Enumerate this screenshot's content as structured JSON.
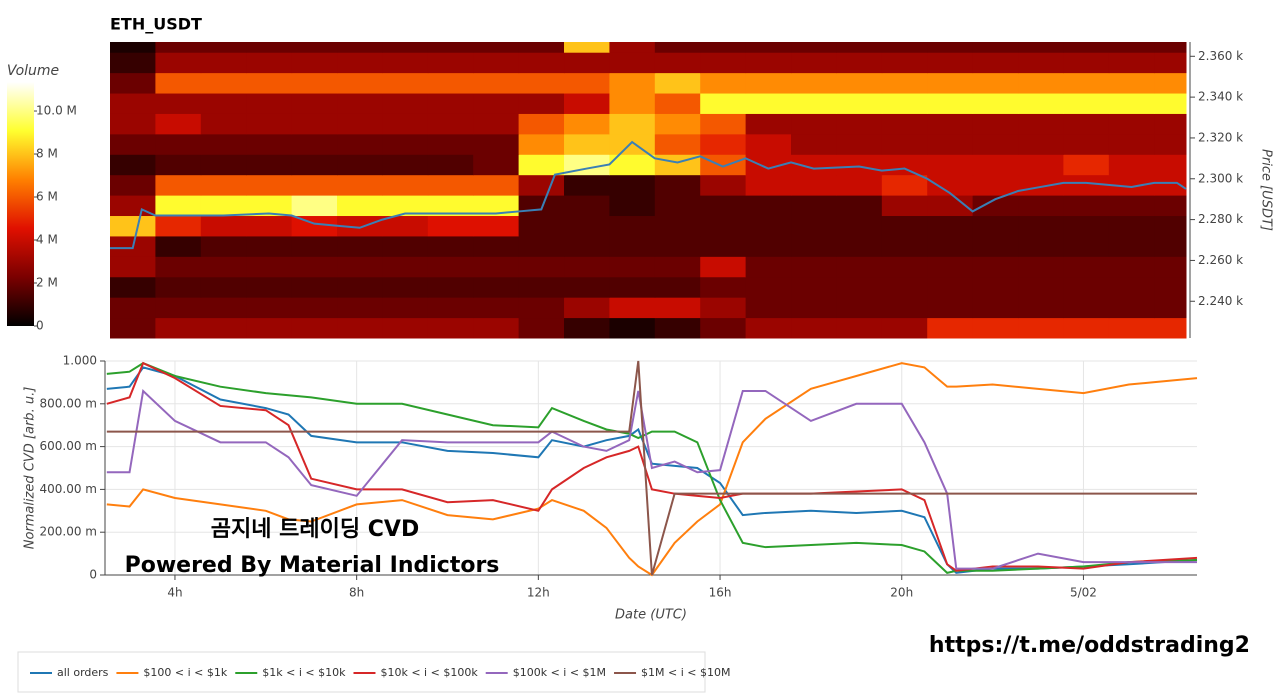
{
  "chart_data": [
    {
      "type": "heatmap",
      "title": "ETH_USDT",
      "xlim": [
        2.5,
        26.2
      ],
      "xbins": [
        2.5,
        3.5,
        4.5,
        5.5,
        6.5,
        7.5,
        8.5,
        9.5,
        10.5,
        11.5,
        12.5,
        13.5,
        14.5,
        15.5,
        16.5,
        17.5,
        18.5,
        19.5,
        20.5,
        21.5,
        22.5,
        23.5,
        24.5,
        25.5,
        26.2
      ],
      "ylim": [
        2.222,
        2.367
      ],
      "ybins": [
        2.222,
        2.232,
        2.242,
        2.252,
        2.262,
        2.272,
        2.282,
        2.292,
        2.302,
        2.312,
        2.322,
        2.332,
        2.342,
        2.352,
        2.362,
        2.367
      ],
      "z": [
        [
          2,
          3,
          3,
          3,
          3,
          3,
          3,
          3,
          3,
          2,
          1,
          0.5,
          1,
          2,
          3,
          3,
          3,
          3,
          5,
          5,
          5,
          5,
          5,
          5
        ],
        [
          2,
          2,
          2,
          2,
          2,
          2,
          2,
          2,
          2,
          2,
          3,
          4,
          4,
          3,
          2,
          2,
          2,
          2,
          2,
          2,
          2,
          2,
          2,
          2
        ],
        [
          1,
          1.5,
          1.5,
          1.5,
          1.5,
          1.5,
          1.5,
          1.5,
          1.5,
          1.5,
          1.5,
          1.5,
          1.5,
          2,
          2,
          2,
          2,
          2,
          2,
          2,
          2,
          2,
          2,
          2
        ],
        [
          3,
          2,
          2,
          2,
          2,
          2,
          2,
          2,
          2,
          2,
          2,
          2,
          2,
          4,
          2,
          2,
          2,
          2,
          2,
          2,
          2,
          2,
          2,
          2
        ],
        [
          3,
          1,
          1.5,
          1.5,
          1.5,
          1.5,
          1.5,
          1.5,
          1.5,
          1.5,
          1.5,
          1.5,
          1.5,
          1.5,
          1.5,
          1.5,
          1.5,
          1.5,
          1.5,
          1.5,
          1.5,
          1.5,
          1.5,
          1.5
        ],
        [
          8,
          5,
          4,
          4,
          4.5,
          4,
          4,
          4.5,
          4.5,
          1.5,
          1.5,
          1.5,
          1.5,
          1.5,
          1.5,
          1.5,
          1.5,
          1.5,
          1.5,
          1.5,
          1.5,
          1.5,
          1.5,
          1.5
        ],
        [
          3,
          9,
          9,
          9,
          10,
          9,
          9,
          9,
          9,
          1.5,
          1.5,
          1,
          1.5,
          1.5,
          1.5,
          1.5,
          1.5,
          3,
          3,
          2,
          2,
          2,
          2,
          2
        ],
        [
          2,
          6,
          6,
          6,
          6,
          6,
          6,
          6,
          6,
          3,
          1,
          1,
          1.5,
          3,
          4,
          4,
          4,
          5,
          4,
          4,
          4,
          4,
          4,
          4
        ],
        [
          1,
          1.5,
          1.5,
          1.5,
          1.5,
          1.5,
          1.5,
          1.5,
          2,
          9,
          10,
          9,
          8,
          6,
          4,
          4,
          4,
          4,
          4,
          4,
          4,
          5,
          4,
          4
        ],
        [
          2,
          2,
          2,
          2,
          2,
          2,
          2,
          2,
          2,
          7,
          8,
          8,
          6,
          5,
          4,
          3,
          3,
          3,
          3,
          3,
          3,
          3,
          3,
          3
        ],
        [
          3,
          4,
          3,
          3,
          3,
          3,
          3,
          3,
          3,
          6,
          7,
          8,
          7,
          6,
          3,
          3,
          3,
          3,
          3,
          3,
          3,
          3,
          3,
          3
        ],
        [
          3,
          3,
          3,
          3,
          3,
          3,
          3,
          3,
          3,
          3,
          4,
          7,
          6,
          9,
          9,
          9,
          9,
          9,
          9,
          9,
          9,
          9,
          9,
          9
        ],
        [
          2,
          6,
          6,
          6,
          6,
          6,
          6,
          6,
          6,
          6,
          6,
          7,
          8,
          7,
          7,
          7,
          7,
          7,
          7,
          7,
          7,
          7,
          7,
          7
        ],
        [
          1,
          3,
          3,
          3,
          3,
          3,
          3,
          3,
          3,
          3,
          3,
          3,
          3,
          3,
          3,
          3,
          3,
          3,
          3,
          3,
          3,
          3,
          3,
          3
        ],
        [
          0.5,
          2,
          2,
          2,
          2,
          2,
          2,
          2,
          2,
          2,
          8,
          3,
          2,
          2,
          2,
          2,
          2,
          2,
          2,
          2,
          2,
          2,
          2,
          2
        ]
      ],
      "colormap": [
        "#000000",
        "#7a0000",
        "#e01000",
        "#ff8000",
        "#ffff30",
        "#ffffff"
      ],
      "colorbar": {
        "title": "Volume",
        "clim": [
          0,
          11.35
        ],
        "ticks": [
          0,
          {
            "value": 2,
            "label": "2 M"
          },
          {
            "value": 4,
            "label": "4 M"
          },
          {
            "value": 6,
            "label": "6 M"
          },
          {
            "value": 8,
            "label": "8 M"
          },
          {
            "value": 10,
            "label": "10.0 M"
          }
        ]
      },
      "ylabel": "Price [USDT]",
      "yticks": [
        {
          "value": 2.24,
          "label": "2.240 k"
        },
        {
          "value": 2.26,
          "label": "2.260 k"
        },
        {
          "value": 2.28,
          "label": "2.280 k"
        },
        {
          "value": 2.3,
          "label": "2.300 k"
        },
        {
          "value": 2.32,
          "label": "2.320 k"
        },
        {
          "value": 2.34,
          "label": "2.340 k"
        },
        {
          "value": 2.36,
          "label": "2.360 k"
        }
      ],
      "price_line": {
        "color": "#3a7fb5",
        "x": [
          2.5,
          3.0,
          3.2,
          3.5,
          4,
          5,
          6,
          6.5,
          7,
          7.5,
          8,
          8.5,
          9,
          10,
          11,
          11.5,
          12,
          12.3,
          13,
          13.5,
          14,
          14.5,
          15,
          15.5,
          16,
          16.5,
          17,
          17.5,
          18,
          19,
          19.5,
          20,
          20.5,
          21,
          21.5,
          22,
          22.5,
          23,
          23.5,
          24,
          25,
          25.5,
          26,
          26.2
        ],
        "values": [
          2.266,
          2.266,
          2.285,
          2.282,
          2.282,
          2.282,
          2.283,
          2.282,
          2.278,
          2.277,
          2.276,
          2.28,
          2.283,
          2.283,
          2.283,
          2.284,
          2.285,
          2.302,
          2.305,
          2.307,
          2.318,
          2.31,
          2.308,
          2.311,
          2.306,
          2.31,
          2.305,
          2.308,
          2.305,
          2.306,
          2.304,
          2.305,
          2.3,
          2.293,
          2.284,
          2.29,
          2.294,
          2.296,
          2.298,
          2.298,
          2.296,
          2.298,
          2.298,
          2.295
        ]
      }
    },
    {
      "type": "line",
      "xlabel": "Date (UTC)",
      "ylabel": "Normalized CVD [arb. u.]",
      "xlim": [
        2.46,
        26.5
      ],
      "ylim": [
        0,
        1
      ],
      "xticks": [
        {
          "value": 4,
          "label": "4h"
        },
        {
          "value": 8,
          "label": "8h"
        },
        {
          "value": 12,
          "label": "12h"
        },
        {
          "value": 16,
          "label": "16h"
        },
        {
          "value": 20,
          "label": "20h"
        },
        {
          "value": 24,
          "label": "5/02"
        }
      ],
      "yticks": [
        0,
        {
          "value": 0.2,
          "label": "200.00 m"
        },
        {
          "value": 0.4,
          "label": "400.00 m"
        },
        {
          "value": 0.6,
          "label": "600.00 m"
        },
        {
          "value": 0.8,
          "label": "800.00 m"
        },
        {
          "value": 1,
          "label": "1.000"
        }
      ],
      "grid": true,
      "x": [
        2.5,
        3,
        3.3,
        4,
        5,
        6,
        6.5,
        7,
        8,
        9,
        10,
        11,
        12,
        12.3,
        13,
        13.5,
        14,
        14.2,
        14.5,
        15,
        15.5,
        16,
        16.5,
        17,
        18,
        19,
        20,
        20.5,
        21,
        21.2,
        22,
        23,
        24,
        25,
        26.5
      ],
      "series": [
        {
          "name": "all orders",
          "color": "#1f77b4",
          "values": [
            0.87,
            0.88,
            0.97,
            0.93,
            0.82,
            0.78,
            0.75,
            0.65,
            0.62,
            0.62,
            0.58,
            0.57,
            0.55,
            0.63,
            0.6,
            0.63,
            0.65,
            0.68,
            0.52,
            0.51,
            0.5,
            0.43,
            0.28,
            0.29,
            0.3,
            0.29,
            0.3,
            0.27,
            0.05,
            0.01,
            0.03,
            0.03,
            0.04,
            0.05,
            0.07
          ]
        },
        {
          "name": "$100 < i < $1k",
          "color": "#ff7f0e",
          "values": [
            0.33,
            0.32,
            0.4,
            0.36,
            0.33,
            0.3,
            0.26,
            0.25,
            0.33,
            0.35,
            0.28,
            0.26,
            0.31,
            0.35,
            0.3,
            0.22,
            0.08,
            0.04,
            0,
            0.15,
            0.25,
            0.33,
            0.62,
            0.73,
            0.87,
            0.93,
            0.99,
            0.97,
            0.88,
            0.88,
            0.89,
            0.87,
            0.85,
            0.89,
            0.92
          ]
        },
        {
          "name": "$1k < i < $10k",
          "color": "#2ca02c",
          "values": [
            0.94,
            0.95,
            0.99,
            0.93,
            0.88,
            0.85,
            0.84,
            0.83,
            0.8,
            0.8,
            0.75,
            0.7,
            0.69,
            0.78,
            0.72,
            0.68,
            0.66,
            0.64,
            0.67,
            0.67,
            0.62,
            0.35,
            0.15,
            0.13,
            0.14,
            0.15,
            0.14,
            0.11,
            0.01,
            0.02,
            0.02,
            0.03,
            0.04,
            0.06,
            0.07
          ]
        },
        {
          "name": "$10k < i < $100k",
          "color": "#d62728",
          "values": [
            0.8,
            0.83,
            0.99,
            0.92,
            0.79,
            0.77,
            0.7,
            0.45,
            0.4,
            0.4,
            0.34,
            0.35,
            0.3,
            0.4,
            0.5,
            0.55,
            0.58,
            0.6,
            0.4,
            0.38,
            0.37,
            0.36,
            0.38,
            0.38,
            0.38,
            0.39,
            0.4,
            0.35,
            0.05,
            0.02,
            0.04,
            0.04,
            0.03,
            0.06,
            0.08
          ]
        },
        {
          "name": "$100k < i < $1M",
          "color": "#9467bd",
          "values": [
            0.48,
            0.48,
            0.86,
            0.72,
            0.62,
            0.62,
            0.55,
            0.42,
            0.37,
            0.63,
            0.62,
            0.62,
            0.62,
            0.67,
            0.6,
            0.58,
            0.63,
            0.86,
            0.5,
            0.53,
            0.48,
            0.49,
            0.86,
            0.86,
            0.72,
            0.8,
            0.8,
            0.62,
            0.38,
            0.03,
            0.03,
            0.1,
            0.06,
            0.06,
            0.06
          ]
        },
        {
          "name": "$1M < i < $10M",
          "color": "#8c564b",
          "values": [
            0.67,
            0.67,
            0.67,
            0.67,
            0.67,
            0.67,
            0.67,
            0.67,
            0.67,
            0.67,
            0.67,
            0.67,
            0.67,
            0.67,
            0.67,
            0.67,
            0.67,
            1,
            0,
            0.38,
            0.38,
            0.38,
            0.38,
            0.38,
            0.38,
            0.38,
            0.38,
            0.38,
            0.38,
            0.38,
            0.38,
            0.38,
            0.38,
            0.38,
            0.38
          ]
        }
      ]
    }
  ],
  "overlay_text": [
    "곰지네 트레이딩 CVD",
    "Powered By Material Indictors"
  ],
  "link": "https://t.me/oddstrading2"
}
